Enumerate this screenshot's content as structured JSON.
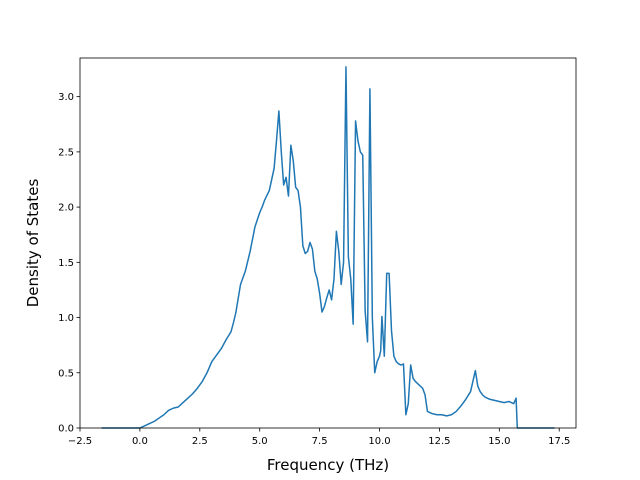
{
  "chart_data": {
    "type": "line",
    "title": "",
    "xlabel": "Frequency (THz)",
    "ylabel": "Density of States",
    "xlim": [
      -2.5,
      18.2
    ],
    "ylim": [
      0.0,
      3.35
    ],
    "xticks": [
      -2.5,
      0.0,
      2.5,
      5.0,
      7.5,
      10.0,
      12.5,
      15.0,
      17.5
    ],
    "xtick_labels": [
      "−2.5",
      "0.0",
      "2.5",
      "5.0",
      "7.5",
      "10.0",
      "12.5",
      "15.0",
      "17.5"
    ],
    "yticks": [
      0.0,
      0.5,
      1.0,
      1.5,
      2.0,
      2.5,
      3.0
    ],
    "ytick_labels": [
      "0.0",
      "0.5",
      "1.0",
      "1.5",
      "2.0",
      "2.5",
      "3.0"
    ],
    "grid": false,
    "legend": "none",
    "series": [
      {
        "color": "#1f77b4",
        "x": [
          -1.6,
          -1.0,
          -0.5,
          0.0,
          0.2,
          0.4,
          0.6,
          0.8,
          1.0,
          1.2,
          1.4,
          1.6,
          1.8,
          2.0,
          2.2,
          2.4,
          2.6,
          2.8,
          3.0,
          3.2,
          3.4,
          3.6,
          3.8,
          3.9,
          4.0,
          4.2,
          4.4,
          4.6,
          4.8,
          5.0,
          5.1,
          5.2,
          5.4,
          5.6,
          5.7,
          5.8,
          5.9,
          6.0,
          6.1,
          6.2,
          6.3,
          6.4,
          6.5,
          6.6,
          6.7,
          6.8,
          6.9,
          7.0,
          7.1,
          7.2,
          7.3,
          7.4,
          7.5,
          7.6,
          7.7,
          7.8,
          7.9,
          8.0,
          8.1,
          8.2,
          8.3,
          8.4,
          8.5,
          8.6,
          8.7,
          8.8,
          8.9,
          9.0,
          9.1,
          9.2,
          9.3,
          9.4,
          9.5,
          9.6,
          9.7,
          9.8,
          9.9,
          10.0,
          10.05,
          10.1,
          10.2,
          10.3,
          10.4,
          10.5,
          10.6,
          10.7,
          10.8,
          10.9,
          11.0,
          11.1,
          11.2,
          11.3,
          11.4,
          11.5,
          11.6,
          11.7,
          11.8,
          11.9,
          12.0,
          12.2,
          12.4,
          12.6,
          12.8,
          13.0,
          13.2,
          13.4,
          13.6,
          13.8,
          14.0,
          14.1,
          14.2,
          14.3,
          14.4,
          14.6,
          14.8,
          15.0,
          15.2,
          15.4,
          15.6,
          15.7,
          15.75,
          15.8,
          16.2,
          17.0,
          17.3
        ],
        "y": [
          0.0,
          0.0,
          0.0,
          0.0,
          0.02,
          0.04,
          0.06,
          0.09,
          0.12,
          0.16,
          0.18,
          0.19,
          0.23,
          0.27,
          0.31,
          0.36,
          0.42,
          0.5,
          0.6,
          0.66,
          0.72,
          0.8,
          0.87,
          0.95,
          1.04,
          1.3,
          1.42,
          1.6,
          1.82,
          1.95,
          2.0,
          2.06,
          2.15,
          2.35,
          2.6,
          2.87,
          2.5,
          2.2,
          2.27,
          2.1,
          2.56,
          2.42,
          2.18,
          2.15,
          2.0,
          1.65,
          1.58,
          1.6,
          1.68,
          1.62,
          1.42,
          1.35,
          1.22,
          1.05,
          1.1,
          1.18,
          1.25,
          1.16,
          1.35,
          1.78,
          1.6,
          1.3,
          1.5,
          3.27,
          1.55,
          1.35,
          0.94,
          2.78,
          2.6,
          2.5,
          2.47,
          1.06,
          0.78,
          3.07,
          1.0,
          0.5,
          0.6,
          0.65,
          0.7,
          1.01,
          0.65,
          1.4,
          1.4,
          0.88,
          0.65,
          0.6,
          0.58,
          0.57,
          0.58,
          0.12,
          0.22,
          0.57,
          0.45,
          0.42,
          0.4,
          0.38,
          0.36,
          0.3,
          0.15,
          0.13,
          0.12,
          0.12,
          0.11,
          0.12,
          0.15,
          0.2,
          0.26,
          0.33,
          0.52,
          0.38,
          0.33,
          0.3,
          0.28,
          0.26,
          0.25,
          0.24,
          0.23,
          0.24,
          0.22,
          0.27,
          0.0,
          0.0,
          0.0,
          0.0,
          0.0
        ]
      }
    ]
  }
}
